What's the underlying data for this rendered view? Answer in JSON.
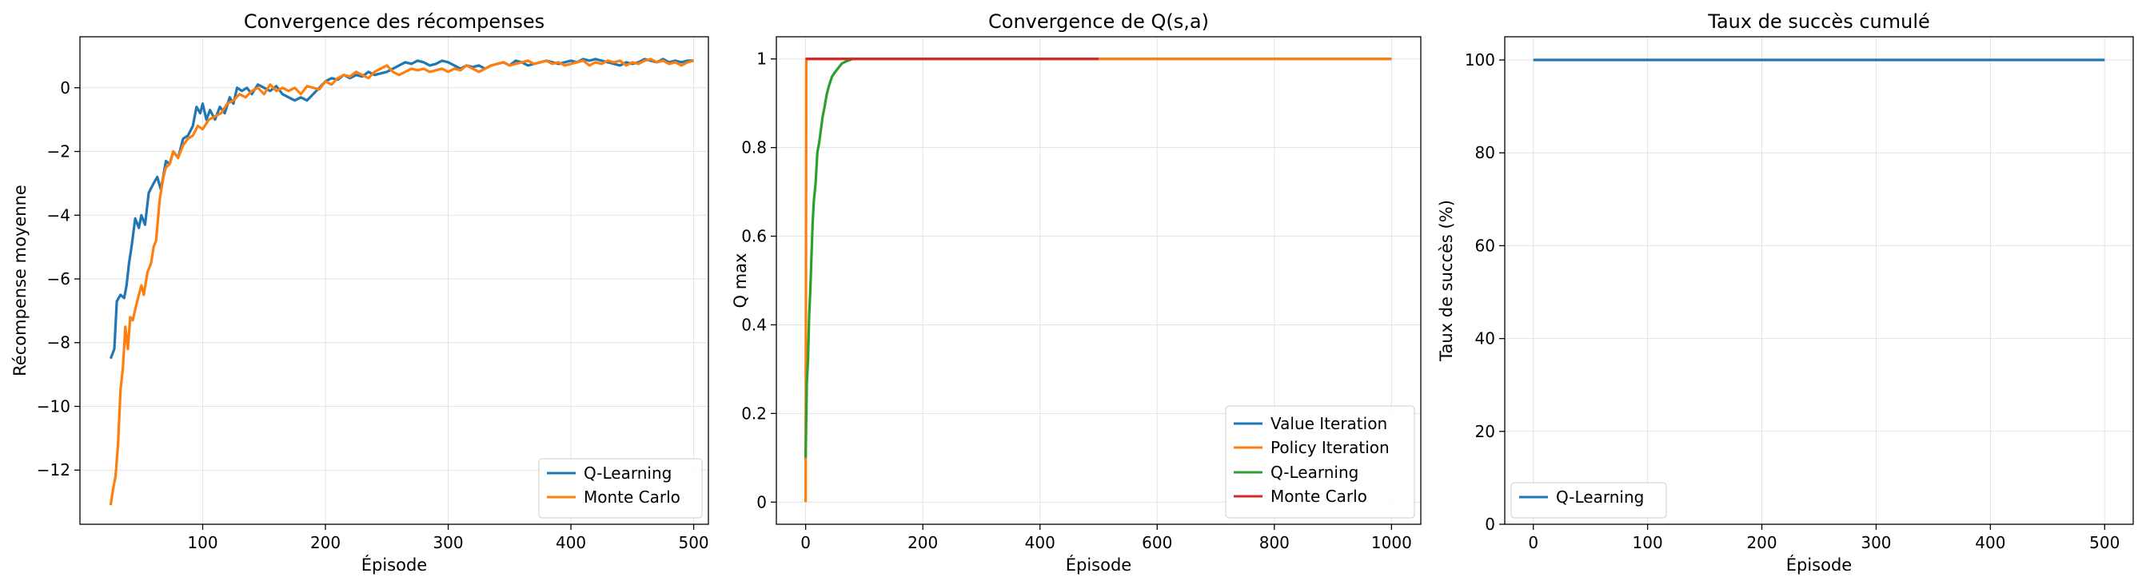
{
  "chart_data": [
    {
      "type": "line",
      "title": "Convergence des récompenses",
      "xlabel": "Épisode",
      "ylabel": "Récompense moyenne",
      "xlim": [
        0,
        512
      ],
      "ylim": [
        -13.7,
        1.6
      ],
      "xticks": [
        100,
        200,
        300,
        400,
        500
      ],
      "yticks": [
        -12,
        -10,
        -8,
        -6,
        -4,
        -2,
        0
      ],
      "grid": true,
      "legend_position": "lower-right",
      "series": [
        {
          "name": "Q-Learning",
          "color": "#1f77b4",
          "points": [
            [
              25,
              -8.5
            ],
            [
              28,
              -8.2
            ],
            [
              30,
              -6.7
            ],
            [
              33,
              -6.5
            ],
            [
              36,
              -6.6
            ],
            [
              38,
              -6.2
            ],
            [
              40,
              -5.5
            ],
            [
              42,
              -5.0
            ],
            [
              45,
              -4.1
            ],
            [
              48,
              -4.4
            ],
            [
              50,
              -4.0
            ],
            [
              53,
              -4.3
            ],
            [
              56,
              -3.3
            ],
            [
              60,
              -3.0
            ],
            [
              63,
              -2.8
            ],
            [
              66,
              -3.2
            ],
            [
              70,
              -2.3
            ],
            [
              73,
              -2.4
            ],
            [
              76,
              -2.0
            ],
            [
              80,
              -2.2
            ],
            [
              84,
              -1.6
            ],
            [
              88,
              -1.5
            ],
            [
              92,
              -1.2
            ],
            [
              95,
              -0.6
            ],
            [
              98,
              -0.8
            ],
            [
              100,
              -0.5
            ],
            [
              103,
              -1.0
            ],
            [
              106,
              -0.7
            ],
            [
              110,
              -1.0
            ],
            [
              114,
              -0.6
            ],
            [
              118,
              -0.8
            ],
            [
              122,
              -0.3
            ],
            [
              125,
              -0.5
            ],
            [
              128,
              0.0
            ],
            [
              132,
              -0.1
            ],
            [
              136,
              0.0
            ],
            [
              140,
              -0.2
            ],
            [
              145,
              0.1
            ],
            [
              150,
              0.0
            ],
            [
              155,
              -0.1
            ],
            [
              160,
              0.05
            ],
            [
              165,
              -0.2
            ],
            [
              170,
              -0.3
            ],
            [
              175,
              -0.4
            ],
            [
              180,
              -0.3
            ],
            [
              185,
              -0.4
            ],
            [
              190,
              -0.2
            ],
            [
              195,
              0.0
            ],
            [
              200,
              0.2
            ],
            [
              205,
              0.3
            ],
            [
              210,
              0.25
            ],
            [
              215,
              0.4
            ],
            [
              220,
              0.3
            ],
            [
              225,
              0.4
            ],
            [
              230,
              0.35
            ],
            [
              235,
              0.5
            ],
            [
              240,
              0.4
            ],
            [
              245,
              0.45
            ],
            [
              250,
              0.5
            ],
            [
              255,
              0.6
            ],
            [
              260,
              0.7
            ],
            [
              265,
              0.8
            ],
            [
              270,
              0.75
            ],
            [
              275,
              0.85
            ],
            [
              280,
              0.8
            ],
            [
              285,
              0.7
            ],
            [
              290,
              0.75
            ],
            [
              295,
              0.85
            ],
            [
              300,
              0.8
            ],
            [
              305,
              0.7
            ],
            [
              310,
              0.6
            ],
            [
              315,
              0.7
            ],
            [
              320,
              0.65
            ],
            [
              325,
              0.7
            ],
            [
              330,
              0.6
            ],
            [
              335,
              0.7
            ],
            [
              340,
              0.75
            ],
            [
              345,
              0.8
            ],
            [
              350,
              0.7
            ],
            [
              355,
              0.85
            ],
            [
              360,
              0.8
            ],
            [
              365,
              0.7
            ],
            [
              370,
              0.75
            ],
            [
              375,
              0.8
            ],
            [
              380,
              0.85
            ],
            [
              385,
              0.8
            ],
            [
              390,
              0.75
            ],
            [
              395,
              0.8
            ],
            [
              400,
              0.85
            ],
            [
              405,
              0.8
            ],
            [
              410,
              0.9
            ],
            [
              415,
              0.85
            ],
            [
              420,
              0.9
            ],
            [
              425,
              0.85
            ],
            [
              430,
              0.8
            ],
            [
              435,
              0.75
            ],
            [
              440,
              0.7
            ],
            [
              445,
              0.8
            ],
            [
              450,
              0.75
            ],
            [
              455,
              0.8
            ],
            [
              460,
              0.9
            ],
            [
              465,
              0.85
            ],
            [
              470,
              0.8
            ],
            [
              475,
              0.9
            ],
            [
              480,
              0.8
            ],
            [
              485,
              0.85
            ],
            [
              490,
              0.8
            ],
            [
              495,
              0.85
            ],
            [
              500,
              0.85
            ]
          ]
        },
        {
          "name": "Monte Carlo",
          "color": "#ff7f0e",
          "points": [
            [
              25,
              -13.1
            ],
            [
              27,
              -12.6
            ],
            [
              29,
              -12.2
            ],
            [
              31,
              -11.2
            ],
            [
              33,
              -9.5
            ],
            [
              35,
              -8.8
            ],
            [
              37,
              -7.5
            ],
            [
              39,
              -8.2
            ],
            [
              41,
              -7.2
            ],
            [
              43,
              -7.3
            ],
            [
              46,
              -6.8
            ],
            [
              48,
              -6.5
            ],
            [
              50,
              -6.2
            ],
            [
              52,
              -6.5
            ],
            [
              55,
              -5.8
            ],
            [
              58,
              -5.5
            ],
            [
              60,
              -5.0
            ],
            [
              62,
              -4.8
            ],
            [
              65,
              -3.5
            ],
            [
              68,
              -2.8
            ],
            [
              70,
              -2.5
            ],
            [
              73,
              -2.4
            ],
            [
              76,
              -2.0
            ],
            [
              80,
              -2.2
            ],
            [
              84,
              -1.8
            ],
            [
              88,
              -1.6
            ],
            [
              92,
              -1.5
            ],
            [
              96,
              -1.2
            ],
            [
              100,
              -1.3
            ],
            [
              105,
              -1.0
            ],
            [
              110,
              -0.9
            ],
            [
              115,
              -0.8
            ],
            [
              120,
              -0.5
            ],
            [
              125,
              -0.4
            ],
            [
              130,
              -0.2
            ],
            [
              135,
              -0.3
            ],
            [
              140,
              -0.1
            ],
            [
              145,
              0.0
            ],
            [
              150,
              -0.2
            ],
            [
              155,
              0.1
            ],
            [
              160,
              -0.1
            ],
            [
              165,
              0.0
            ],
            [
              170,
              -0.1
            ],
            [
              175,
              0.0
            ],
            [
              180,
              -0.2
            ],
            [
              185,
              0.05
            ],
            [
              190,
              0.0
            ],
            [
              195,
              -0.05
            ],
            [
              200,
              0.2
            ],
            [
              205,
              0.1
            ],
            [
              210,
              0.3
            ],
            [
              215,
              0.4
            ],
            [
              220,
              0.35
            ],
            [
              225,
              0.5
            ],
            [
              230,
              0.4
            ],
            [
              235,
              0.3
            ],
            [
              240,
              0.5
            ],
            [
              245,
              0.6
            ],
            [
              250,
              0.7
            ],
            [
              255,
              0.5
            ],
            [
              260,
              0.4
            ],
            [
              265,
              0.5
            ],
            [
              270,
              0.6
            ],
            [
              275,
              0.55
            ],
            [
              280,
              0.6
            ],
            [
              285,
              0.5
            ],
            [
              290,
              0.55
            ],
            [
              295,
              0.6
            ],
            [
              300,
              0.5
            ],
            [
              305,
              0.6
            ],
            [
              310,
              0.55
            ],
            [
              315,
              0.7
            ],
            [
              320,
              0.6
            ],
            [
              325,
              0.5
            ],
            [
              330,
              0.6
            ],
            [
              335,
              0.7
            ],
            [
              340,
              0.75
            ],
            [
              345,
              0.8
            ],
            [
              350,
              0.7
            ],
            [
              355,
              0.75
            ],
            [
              360,
              0.8
            ],
            [
              365,
              0.85
            ],
            [
              370,
              0.75
            ],
            [
              375,
              0.8
            ],
            [
              380,
              0.85
            ],
            [
              385,
              0.75
            ],
            [
              390,
              0.8
            ],
            [
              395,
              0.7
            ],
            [
              400,
              0.75
            ],
            [
              405,
              0.8
            ],
            [
              410,
              0.85
            ],
            [
              415,
              0.7
            ],
            [
              420,
              0.8
            ],
            [
              425,
              0.75
            ],
            [
              430,
              0.85
            ],
            [
              435,
              0.8
            ],
            [
              440,
              0.85
            ],
            [
              445,
              0.7
            ],
            [
              450,
              0.8
            ],
            [
              455,
              0.75
            ],
            [
              460,
              0.85
            ],
            [
              465,
              0.9
            ],
            [
              470,
              0.8
            ],
            [
              475,
              0.85
            ],
            [
              480,
              0.75
            ],
            [
              485,
              0.8
            ],
            [
              490,
              0.7
            ],
            [
              495,
              0.8
            ],
            [
              500,
              0.85
            ]
          ]
        }
      ]
    },
    {
      "type": "line",
      "title": "Convergence de Q(s,a)",
      "xlabel": "Épisode",
      "ylabel": "Q max",
      "xlim": [
        -50,
        1050
      ],
      "ylim": [
        -0.05,
        1.05
      ],
      "xticks": [
        0,
        200,
        400,
        600,
        800,
        1000
      ],
      "yticks": [
        0.0,
        0.2,
        0.4,
        0.6,
        0.8,
        1.0
      ],
      "grid": true,
      "legend_position": "lower-right",
      "series": [
        {
          "name": "Value Iteration",
          "color": "#1f77b4",
          "points": [
            [
              0,
              1.0
            ],
            [
              1000,
              1.0
            ]
          ]
        },
        {
          "name": "Policy Iteration",
          "color": "#ff7f0e",
          "points": [
            [
              0,
              0.0
            ],
            [
              1,
              1.0
            ],
            [
              1000,
              1.0
            ]
          ]
        },
        {
          "name": "Q-Learning",
          "color": "#2ca02c",
          "points": [
            [
              0,
              0.1
            ],
            [
              2,
              0.27
            ],
            [
              4,
              0.32
            ],
            [
              6,
              0.42
            ],
            [
              8,
              0.48
            ],
            [
              10,
              0.56
            ],
            [
              12,
              0.63
            ],
            [
              14,
              0.68
            ],
            [
              17,
              0.72
            ],
            [
              20,
              0.79
            ],
            [
              23,
              0.81
            ],
            [
              26,
              0.84
            ],
            [
              29,
              0.87
            ],
            [
              32,
              0.89
            ],
            [
              36,
              0.92
            ],
            [
              40,
              0.94
            ],
            [
              45,
              0.96
            ],
            [
              50,
              0.97
            ],
            [
              56,
              0.98
            ],
            [
              62,
              0.99
            ],
            [
              70,
              0.995
            ],
            [
              80,
              1.0
            ],
            [
              100,
              1.0
            ],
            [
              500,
              1.0
            ]
          ]
        },
        {
          "name": "Monte Carlo",
          "color": "#d62728",
          "points": [
            [
              0,
              1.0
            ],
            [
              500,
              1.0
            ]
          ]
        }
      ]
    },
    {
      "type": "line",
      "title": "Taux de succès cumulé",
      "xlabel": "Épisode",
      "ylabel": "Taux de succès (%)",
      "xlim": [
        -25,
        525
      ],
      "ylim": [
        0,
        105
      ],
      "xticks": [
        0,
        100,
        200,
        300,
        400,
        500
      ],
      "yticks": [
        0,
        20,
        40,
        60,
        80,
        100
      ],
      "grid": true,
      "legend_position": "lower-left",
      "series": [
        {
          "name": "Q-Learning",
          "color": "#1f77b4",
          "points": [
            [
              0,
              100
            ],
            [
              500,
              100
            ]
          ]
        }
      ]
    }
  ]
}
